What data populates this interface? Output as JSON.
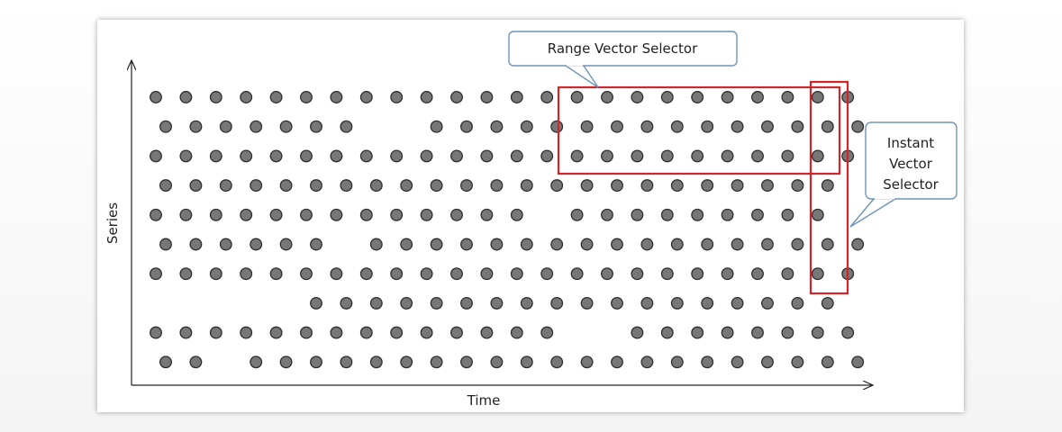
{
  "labels": {
    "x_axis": "Time",
    "y_axis": "Series",
    "range_selector": "Range Vector Selector",
    "instant_selector": [
      "Instant",
      "Vector",
      "Selector"
    ]
  },
  "colors": {
    "dot_fill": "#777777",
    "dot_stroke": "#2e2e2e",
    "selector": "#d3252a",
    "callout_border": "#6f93b8"
  },
  "series": [
    {
      "present": [
        1,
        1,
        1,
        1,
        1,
        1,
        1,
        1,
        1,
        1,
        1,
        1,
        1,
        1,
        1,
        1,
        1,
        1,
        1,
        1,
        1,
        1,
        1,
        1
      ]
    },
    {
      "present": [
        1,
        1,
        1,
        1,
        1,
        1,
        1,
        0,
        0,
        1,
        1,
        1,
        1,
        1,
        1,
        1,
        1,
        1,
        1,
        1,
        1,
        1,
        1,
        1
      ]
    },
    {
      "present": [
        1,
        1,
        1,
        1,
        1,
        1,
        1,
        1,
        1,
        1,
        1,
        1,
        1,
        1,
        1,
        1,
        1,
        1,
        1,
        1,
        1,
        1,
        1,
        1
      ]
    },
    {
      "present": [
        1,
        1,
        1,
        1,
        1,
        1,
        1,
        1,
        1,
        1,
        1,
        1,
        1,
        1,
        1,
        1,
        1,
        1,
        1,
        1,
        1,
        1,
        1,
        0
      ]
    },
    {
      "present": [
        1,
        1,
        1,
        1,
        1,
        1,
        1,
        1,
        1,
        1,
        1,
        1,
        1,
        0,
        1,
        1,
        1,
        1,
        1,
        1,
        1,
        1,
        1,
        0
      ]
    },
    {
      "present": [
        1,
        1,
        1,
        1,
        1,
        1,
        0,
        1,
        1,
        1,
        1,
        1,
        1,
        1,
        1,
        1,
        1,
        1,
        1,
        1,
        1,
        1,
        1,
        1
      ]
    },
    {
      "present": [
        1,
        1,
        1,
        1,
        1,
        1,
        1,
        1,
        1,
        1,
        1,
        1,
        1,
        1,
        1,
        1,
        1,
        1,
        1,
        1,
        1,
        1,
        1,
        1
      ]
    },
    {
      "present": [
        0,
        0,
        0,
        0,
        0,
        1,
        1,
        1,
        1,
        1,
        1,
        1,
        1,
        1,
        1,
        1,
        1,
        1,
        1,
        1,
        1,
        1,
        1,
        0
      ]
    },
    {
      "present": [
        1,
        1,
        1,
        1,
        1,
        1,
        1,
        1,
        1,
        1,
        1,
        1,
        1,
        1,
        0,
        0,
        1,
        1,
        1,
        1,
        1,
        1,
        1,
        1
      ]
    },
    {
      "present": [
        1,
        1,
        0,
        1,
        1,
        1,
        1,
        1,
        1,
        1,
        1,
        1,
        1,
        1,
        1,
        1,
        1,
        1,
        1,
        1,
        1,
        1,
        1,
        1
      ]
    }
  ]
}
